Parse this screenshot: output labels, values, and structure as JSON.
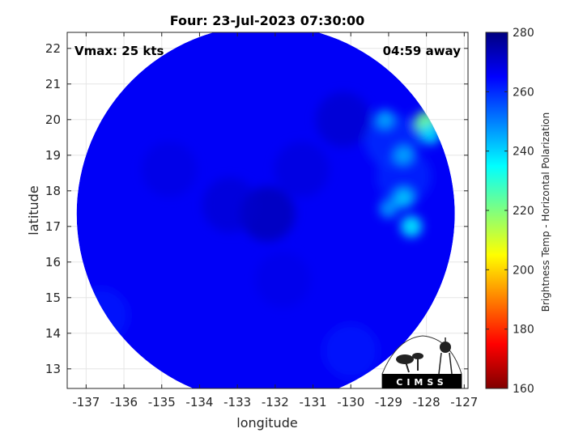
{
  "chart_data": {
    "type": "heatmap",
    "title": "Four: 23-Jul-2023 07:30:00",
    "xlabel": "longitude",
    "ylabel": "latitude",
    "xlim": [
      -137.5,
      -126.9
    ],
    "ylim": [
      12.45,
      22.45
    ],
    "xticks": [
      -137,
      -136,
      -135,
      -134,
      -133,
      -132,
      -131,
      -130,
      -129,
      -128,
      -127
    ],
    "yticks": [
      13,
      14,
      15,
      16,
      17,
      18,
      19,
      20,
      21,
      22
    ],
    "grid": true,
    "annotations": {
      "vmax": "Vmax: 25 kts",
      "time_away": "04:59 away"
    },
    "colorbar": {
      "label": "Brightness Temp - Horizontal Polarization",
      "range": [
        160,
        280
      ],
      "ticks": [
        160,
        180,
        200,
        220,
        240,
        260,
        280
      ],
      "colormap": "jet"
    },
    "field": {
      "center": [
        -132.25,
        17.35
      ],
      "radius_deg": 5.0,
      "background_value": 266,
      "features": [
        {
          "lon": -132.2,
          "lat": 17.35,
          "value": 276
        },
        {
          "lon": -133.2,
          "lat": 17.6,
          "value": 271
        },
        {
          "lon": -131.3,
          "lat": 18.6,
          "value": 270
        },
        {
          "lon": -134.8,
          "lat": 18.6,
          "value": 269
        },
        {
          "lon": -131.8,
          "lat": 15.5,
          "value": 268
        },
        {
          "lon": -130.0,
          "lat": 13.5,
          "value": 262
        },
        {
          "lon": -136.6,
          "lat": 14.5,
          "value": 262
        },
        {
          "lon": -130.2,
          "lat": 20.0,
          "value": 272
        },
        {
          "lon": -128.9,
          "lat": 19.4,
          "value": 258
        },
        {
          "lon": -128.6,
          "lat": 18.4,
          "value": 259
        },
        {
          "lon": -128.0,
          "lat": 19.9,
          "value": 222
        },
        {
          "lon": -127.9,
          "lat": 19.6,
          "value": 240
        },
        {
          "lon": -128.6,
          "lat": 19.0,
          "value": 246
        },
        {
          "lon": -128.6,
          "lat": 17.8,
          "value": 242
        },
        {
          "lon": -128.4,
          "lat": 17.0,
          "value": 238
        },
        {
          "lon": -129.0,
          "lat": 17.5,
          "value": 248
        },
        {
          "lon": -129.1,
          "lat": 20.0,
          "value": 246
        }
      ]
    }
  },
  "logo": {
    "text": "CIMSS"
  },
  "colors": {
    "background": "#ffffff",
    "grid": "#e6e6e6",
    "axis": "#262626"
  }
}
